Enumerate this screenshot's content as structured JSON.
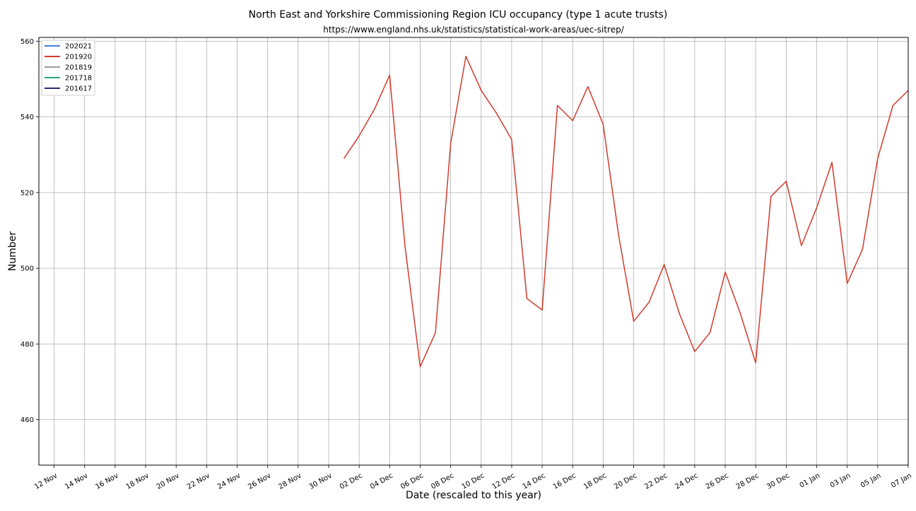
{
  "chart_data": {
    "type": "line",
    "title": "North East and Yorkshire Commissioning Region ICU occupancy (type 1 acute trusts)",
    "subtitle": "https://www.england.nhs.uk/statistics/statistical-work-areas/uec-sitrep/",
    "xlabel": "Date (rescaled to this year)",
    "ylabel": "Number",
    "xlim": [
      "2020-11-11",
      "2021-01-07"
    ],
    "ylim": [
      448,
      561
    ],
    "grid": true,
    "legend_position": "top-left",
    "x_ticks": [
      "12 Nov",
      "14 Nov",
      "16 Nov",
      "18 Nov",
      "20 Nov",
      "22 Nov",
      "24 Nov",
      "26 Nov",
      "28 Nov",
      "30 Nov",
      "02 Dec",
      "04 Dec",
      "06 Dec",
      "08 Dec",
      "10 Dec",
      "12 Dec",
      "14 Dec",
      "16 Dec",
      "18 Dec",
      "20 Dec",
      "22 Dec",
      "24 Dec",
      "26 Dec",
      "28 Dec",
      "30 Dec",
      "01 Jan",
      "03 Jan",
      "05 Jan",
      "07 Jan"
    ],
    "x_tick_dates": [
      "2020-11-12",
      "2020-11-14",
      "2020-11-16",
      "2020-11-18",
      "2020-11-20",
      "2020-11-22",
      "2020-11-24",
      "2020-11-26",
      "2020-11-28",
      "2020-11-30",
      "2020-12-02",
      "2020-12-04",
      "2020-12-06",
      "2020-12-08",
      "2020-12-10",
      "2020-12-12",
      "2020-12-14",
      "2020-12-16",
      "2020-12-18",
      "2020-12-20",
      "2020-12-22",
      "2020-12-24",
      "2020-12-26",
      "2020-12-28",
      "2020-12-30",
      "2021-01-01",
      "2021-01-03",
      "2021-01-05",
      "2021-01-07"
    ],
    "y_ticks": [
      460,
      480,
      500,
      520,
      540,
      560
    ],
    "series": [
      {
        "name": "202021",
        "color": "#3c7fd8",
        "x": [],
        "values": []
      },
      {
        "name": "201920",
        "color": "#d03b2c",
        "x": [
          "2020-12-01",
          "2020-12-02",
          "2020-12-03",
          "2020-12-04",
          "2020-12-05",
          "2020-12-06",
          "2020-12-07",
          "2020-12-08",
          "2020-12-09",
          "2020-12-10",
          "2020-12-11",
          "2020-12-12",
          "2020-12-13",
          "2020-12-14",
          "2020-12-15",
          "2020-12-16",
          "2020-12-17",
          "2020-12-18",
          "2020-12-19",
          "2020-12-20",
          "2020-12-21",
          "2020-12-22",
          "2020-12-23",
          "2020-12-24",
          "2020-12-25",
          "2020-12-26",
          "2020-12-27",
          "2020-12-28",
          "2020-12-29",
          "2020-12-30",
          "2020-12-31",
          "2021-01-01",
          "2021-01-02",
          "2021-01-03",
          "2021-01-04",
          "2021-01-05",
          "2021-01-06",
          "2021-01-07"
        ],
        "values": [
          529,
          535,
          542,
          551,
          506,
          474,
          483,
          533,
          556,
          547,
          541,
          534,
          492,
          489,
          543,
          539,
          548,
          538,
          509,
          486,
          491,
          501,
          488,
          478,
          483,
          499,
          488,
          475,
          519,
          523,
          506,
          516,
          528,
          496,
          505,
          529,
          543,
          547
        ]
      },
      {
        "name": "201819",
        "color": "#9b9b9b",
        "x": [],
        "values": []
      },
      {
        "name": "201718",
        "color": "#2ca57c",
        "x": [],
        "values": []
      },
      {
        "name": "201617",
        "color": "#242a7a",
        "x": [],
        "values": []
      }
    ]
  }
}
